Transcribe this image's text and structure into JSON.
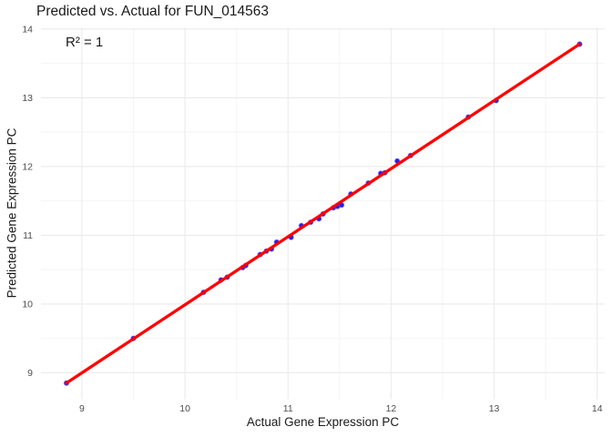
{
  "chart_data": {
    "type": "scatter",
    "title": "Predicted vs. Actual for FUN_014563",
    "annotation": "R² = 1",
    "xlabel": "Actual Gene Expression PC",
    "ylabel": "Predicted Gene Expression PC",
    "xlim": [
      8.603,
      14.073
    ],
    "ylim": [
      8.615,
      14.025
    ],
    "x_ticks": [
      9,
      10,
      11,
      12,
      13,
      14
    ],
    "y_ticks": [
      9,
      10,
      11,
      12,
      13,
      14
    ],
    "grid": "major+minor",
    "legend": "none",
    "points": [
      [
        8.85,
        8.85
      ],
      [
        9.5,
        9.5
      ],
      [
        10.18,
        10.17
      ],
      [
        10.35,
        10.35
      ],
      [
        10.41,
        10.39
      ],
      [
        10.56,
        10.53
      ],
      [
        10.59,
        10.56
      ],
      [
        10.73,
        10.72
      ],
      [
        10.79,
        10.77
      ],
      [
        10.84,
        10.8
      ],
      [
        10.89,
        10.9
      ],
      [
        11.03,
        10.97
      ],
      [
        11.13,
        11.14
      ],
      [
        11.22,
        11.19
      ],
      [
        11.3,
        11.24
      ],
      [
        11.34,
        11.31
      ],
      [
        11.44,
        11.4
      ],
      [
        11.48,
        11.42
      ],
      [
        11.52,
        11.44
      ],
      [
        11.61,
        11.6
      ],
      [
        11.78,
        11.76
      ],
      [
        11.9,
        11.9
      ],
      [
        11.94,
        11.91
      ],
      [
        12.06,
        12.08
      ],
      [
        12.19,
        12.16
      ],
      [
        12.75,
        12.72
      ],
      [
        13.02,
        12.96
      ],
      [
        13.83,
        13.78
      ]
    ],
    "fit_line": {
      "x1": 8.85,
      "y1": 8.85,
      "x2": 13.83,
      "y2": 13.78
    },
    "colors": {
      "point": "#2222EE",
      "point_edge": "#7C5CE8",
      "line": "#FF0000",
      "grid_major": "#EBEBEB",
      "grid_minor": "#F4F4F4",
      "tick_label": "#4D4D4D",
      "text": "#1A1A1A",
      "background": "#FFFFFF"
    }
  }
}
